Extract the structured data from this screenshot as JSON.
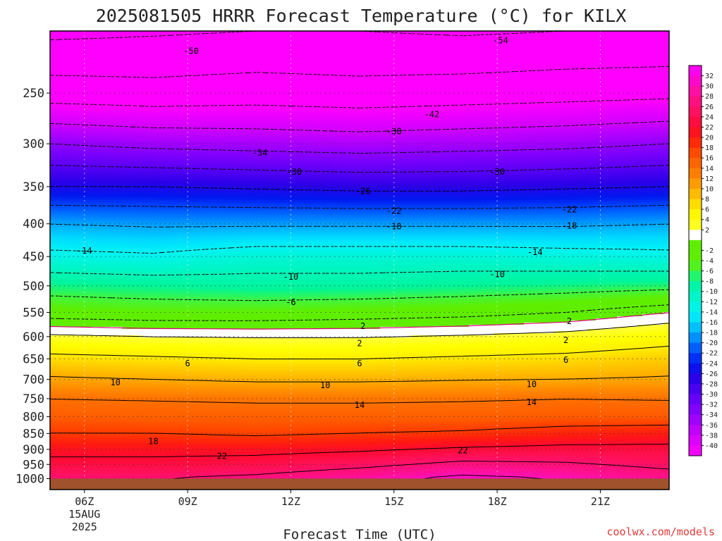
{
  "chart_data": {
    "type": "heatmap",
    "title": "2025081505 HRRR Forecast Temperature (°C) for KILX",
    "xlabel": "Forecast Time (UTC)",
    "ylabel": "",
    "x_ticks": [
      {
        "hour": 6,
        "label": "06Z",
        "sub": [
          "15AUG",
          "2025"
        ]
      },
      {
        "hour": 9,
        "label": "09Z"
      },
      {
        "hour": 12,
        "label": "12Z"
      },
      {
        "hour": 15,
        "label": "15Z"
      },
      {
        "hour": 18,
        "label": "18Z"
      },
      {
        "hour": 21,
        "label": "21Z"
      }
    ],
    "x_range_hours": [
      5,
      23
    ],
    "y_axis": "pressure (hPa), log scale, inverted",
    "y_ticks": [
      250,
      300,
      350,
      400,
      450,
      500,
      550,
      600,
      650,
      700,
      750,
      800,
      850,
      900,
      950,
      1000
    ],
    "y_range": [
      200,
      1040
    ],
    "surface_pressure": 1000,
    "colorbar": {
      "min": -42,
      "max": 34,
      "step": 2,
      "labels": [
        32,
        30,
        28,
        26,
        24,
        22,
        20,
        18,
        16,
        14,
        12,
        10,
        8,
        6,
        4,
        2,
        -2,
        -4,
        -6,
        -8,
        -10,
        -12,
        -14,
        -16,
        -18,
        -20,
        -22,
        -24,
        -26,
        -28,
        -30,
        -32,
        -34,
        -36,
        -38,
        -40
      ]
    },
    "profiles_x_hours": [
      5,
      8,
      11,
      14,
      17,
      20,
      23
    ],
    "profiles": [
      {
        "p": 1000,
        "t": [
          26,
          26,
          27,
          29,
          31,
          30,
          28
        ]
      },
      {
        "p": 950,
        "t": [
          23,
          23,
          23.5,
          25,
          27,
          26.5,
          25
        ]
      },
      {
        "p": 900,
        "t": [
          21,
          21,
          21,
          21.5,
          22.5,
          23,
          23
        ]
      },
      {
        "p": 850,
        "t": [
          18,
          18,
          17.5,
          18,
          18.5,
          19.5,
          20
        ]
      },
      {
        "p": 800,
        "t": [
          15.8,
          15.5,
          15.5,
          15.5,
          15.5,
          16,
          16
        ]
      },
      {
        "p": 750,
        "t": [
          14,
          13.8,
          13.5,
          13.5,
          13.7,
          14,
          13.8
        ]
      },
      {
        "p": 700,
        "t": [
          10.5,
          10,
          9.5,
          9.5,
          9.8,
          10,
          10.4
        ]
      },
      {
        "p": 650,
        "t": [
          7,
          6.5,
          6,
          6,
          6.5,
          7,
          8
        ]
      },
      {
        "p": 600,
        "t": [
          2.5,
          2,
          1.8,
          1.8,
          2.3,
          3,
          4.5
        ]
      },
      {
        "p": 550,
        "t": [
          -3.5,
          -4,
          -4,
          -3.5,
          -3,
          -2,
          0
        ]
      },
      {
        "p": 500,
        "t": [
          -7.5,
          -8,
          -8.5,
          -8.5,
          -8,
          -7.5,
          -7
        ]
      },
      {
        "p": 450,
        "t": [
          -13,
          -13.5,
          -12,
          -12,
          -12,
          -12.5,
          -13
        ]
      },
      {
        "p": 400,
        "t": [
          -18,
          -18.5,
          -18.5,
          -18.5,
          -18.5,
          -18.5,
          -18
        ]
      },
      {
        "p": 350,
        "t": [
          -26,
          -26,
          -26.5,
          -27,
          -27,
          -26.5,
          -26
        ]
      },
      {
        "p": 300,
        "t": [
          -34,
          -35,
          -35.5,
          -36,
          -35.5,
          -35,
          -34
        ]
      },
      {
        "p": 250,
        "t": [
          -44,
          -44.5,
          -44,
          -44.5,
          -44,
          -43.5,
          -43
        ]
      },
      {
        "p": 200,
        "t": [
          -51,
          -50.5,
          -50,
          -50,
          -50.5,
          -50,
          -50
        ]
      }
    ],
    "contour_labels": [
      {
        "v": "-54",
        "x": 18.1,
        "p": 207
      },
      {
        "v": "-50",
        "x": 9.1,
        "p": 215
      },
      {
        "v": "-42",
        "x": 16.1,
        "p": 270
      },
      {
        "v": "-38",
        "x": 15.0,
        "p": 287
      },
      {
        "v": "-34",
        "x": 11.1,
        "p": 310
      },
      {
        "v": "-30",
        "x": 12.1,
        "p": 332
      },
      {
        "v": "-30",
        "x": 18.0,
        "p": 332
      },
      {
        "v": "-26",
        "x": 14.1,
        "p": 356
      },
      {
        "v": "-22",
        "x": 15.0,
        "p": 382
      },
      {
        "v": "-22",
        "x": 20.1,
        "p": 380
      },
      {
        "v": "-18",
        "x": 15.0,
        "p": 404
      },
      {
        "v": "-18",
        "x": 20.1,
        "p": 403
      },
      {
        "v": "-14",
        "x": 6.0,
        "p": 441
      },
      {
        "v": "-14",
        "x": 19.1,
        "p": 443
      },
      {
        "v": "-10",
        "x": 12.0,
        "p": 484
      },
      {
        "v": "-10",
        "x": 18.0,
        "p": 480
      },
      {
        "v": "-6",
        "x": 12.0,
        "p": 530
      },
      {
        "v": "2",
        "x": 14.1,
        "p": 578
      },
      {
        "v": "2",
        "x": 20.1,
        "p": 568
      },
      {
        "v": "2",
        "x": 14.0,
        "p": 615
      },
      {
        "v": "2",
        "x": 20.0,
        "p": 608
      },
      {
        "v": "6",
        "x": 9.0,
        "p": 661
      },
      {
        "v": "6",
        "x": 14.0,
        "p": 661
      },
      {
        "v": "6",
        "x": 20.0,
        "p": 653
      },
      {
        "v": "10",
        "x": 6.9,
        "p": 708
      },
      {
        "v": "10",
        "x": 13.0,
        "p": 715
      },
      {
        "v": "10",
        "x": 19.0,
        "p": 712
      },
      {
        "v": "14",
        "x": 14.0,
        "p": 767
      },
      {
        "v": "14",
        "x": 19.0,
        "p": 760
      },
      {
        "v": "18",
        "x": 8.0,
        "p": 874
      },
      {
        "v": "22",
        "x": 10.0,
        "p": 922
      },
      {
        "v": "22",
        "x": 17.0,
        "p": 904
      }
    ]
  },
  "credit": "coolwx.com/models"
}
